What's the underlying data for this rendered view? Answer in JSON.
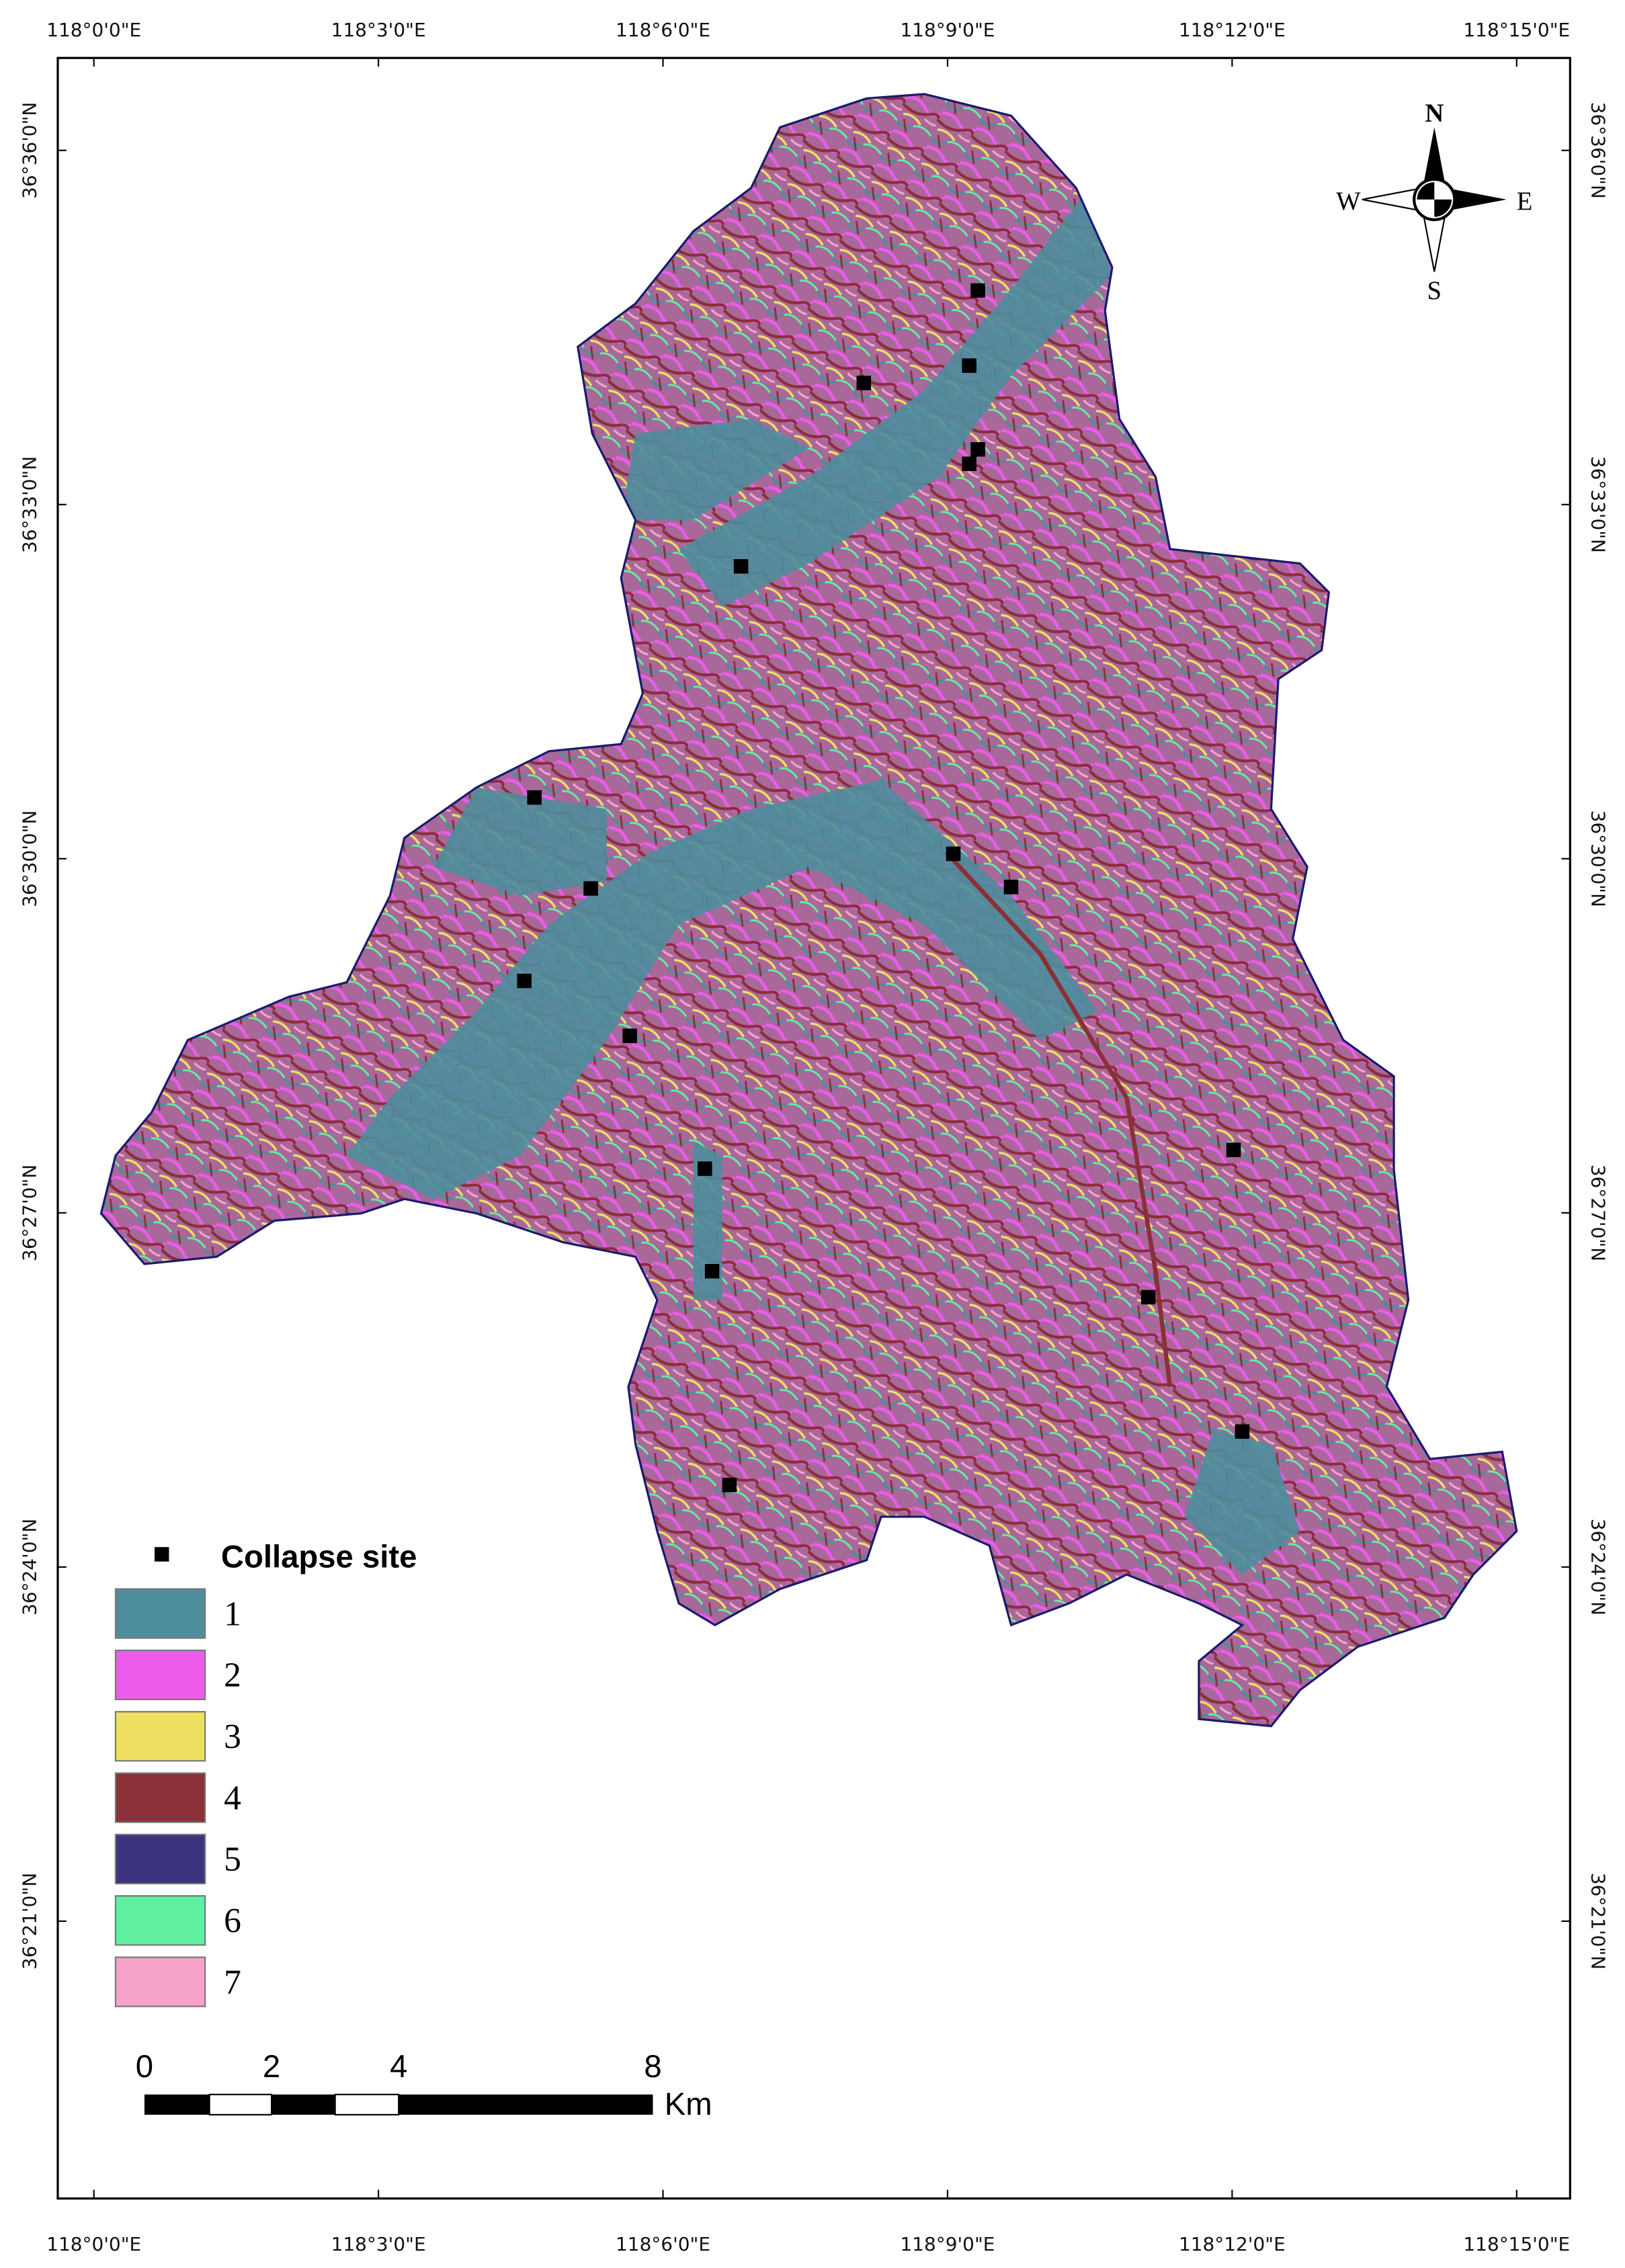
{
  "map": {
    "lon_ticks": [
      "118°0'0\"E",
      "118°3'0\"E",
      "118°6'0\"E",
      "118°9'0\"E",
      "118°12'0\"E",
      "118°15'0\"E"
    ],
    "lat_ticks": [
      "36°36'0\"N",
      "36°33'0\"N",
      "36°30'0\"N",
      "36°27'0\"N",
      "36°24'0\"N",
      "36°21'0\"N"
    ],
    "compass": {
      "n": "N",
      "s": "S",
      "e": "E",
      "w": "W"
    },
    "legend": {
      "title": "Collapse site",
      "classes": [
        {
          "label": "1",
          "color": "#4e8d9c"
        },
        {
          "label": "2",
          "color": "#ec5cec"
        },
        {
          "label": "3",
          "color": "#efdf60"
        },
        {
          "label": "4",
          "color": "#8b2f38"
        },
        {
          "label": "5",
          "color": "#3d3480"
        },
        {
          "label": "6",
          "color": "#5ef0a0"
        },
        {
          "label": "7",
          "color": "#f7a3c9"
        }
      ]
    },
    "scale_bar": {
      "labels": [
        "0",
        "2",
        "4",
        "8"
      ],
      "unit": "Km"
    }
  }
}
